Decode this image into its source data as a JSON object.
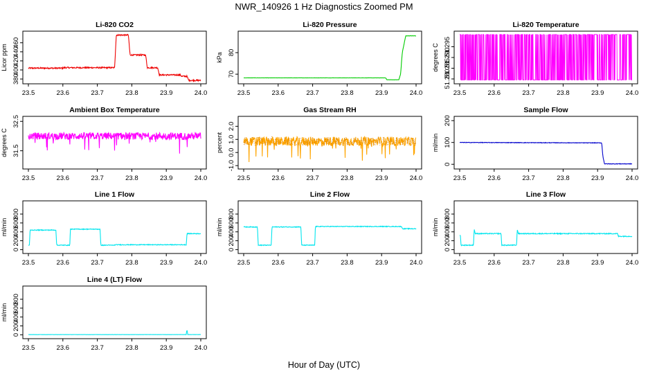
{
  "figure": {
    "title": "NWR_140926  1 Hz Diagnostics Zoomed PM",
    "xlabel": "Hour of Day (UTC)"
  },
  "chart_data": [
    {
      "type": "line",
      "id": "co2",
      "title": "Li-820 CO2",
      "ylabel": "Licor ppm",
      "color": "#ee0000",
      "xlim": [
        23.5,
        24.0
      ],
      "ylim": [
        374,
        481
      ],
      "xticks": [
        23.5,
        23.6,
        23.7,
        23.8,
        23.9,
        24.0
      ],
      "xtick_labels": [
        "23.5",
        "23.6",
        "23.7",
        "23.8",
        "23.9",
        "24.0"
      ],
      "yticks": [
        380,
        400,
        420,
        440,
        460
      ],
      "ytick_labels": [
        "380",
        "400",
        "420",
        "440",
        "460"
      ],
      "noise": 1.5,
      "x": [
        23.5,
        23.6,
        23.6,
        23.75,
        23.755,
        23.79,
        23.795,
        23.84,
        23.845,
        23.875,
        23.88,
        23.94,
        23.945,
        23.96,
        23.965,
        24.0
      ],
      "y": [
        404,
        404,
        405,
        405,
        477,
        477,
        433,
        433,
        405,
        405,
        389,
        389,
        386,
        386,
        377,
        377
      ]
    },
    {
      "type": "line",
      "id": "pressure",
      "title": "Li-820 Pressure",
      "ylabel": "kPa",
      "color": "#00cc00",
      "xlim": [
        23.5,
        24.0
      ],
      "ylim": [
        66.5,
        89
      ],
      "xticks": [
        23.5,
        23.6,
        23.7,
        23.8,
        23.9,
        24.0
      ],
      "xtick_labels": [
        "23.5",
        "23.6",
        "23.7",
        "23.8",
        "23.9",
        "24.0"
      ],
      "yticks": [
        70,
        80
      ],
      "ytick_labels": [
        "70",
        "80"
      ],
      "noise": 0.05,
      "x": [
        23.5,
        23.912,
        23.915,
        23.95,
        23.955,
        23.96,
        23.97,
        24.0
      ],
      "y": [
        68.3,
        68.3,
        67.4,
        67.4,
        70.0,
        80.0,
        87.8,
        87.8
      ]
    },
    {
      "type": "line",
      "id": "temperature",
      "title": "Li-820 Temperature",
      "ylabel": "degrees C",
      "color": "#ff00ff",
      "xlim": [
        23.5,
        24.0
      ],
      "ylim": [
        51.2787,
        51.3013
      ],
      "xticks": [
        23.5,
        23.6,
        23.7,
        23.8,
        23.9,
        24.0
      ],
      "xtick_labels": [
        "23.5",
        "23.6",
        "23.7",
        "23.8",
        "23.9",
        "24.0"
      ],
      "yticks": [
        51.28,
        51.285,
        51.29,
        51.295
      ],
      "ytick_labels": [
        "51.280",
        "51.285",
        "51.290",
        "51.295"
      ],
      "levels": [
        51.2795,
        51.3007
      ],
      "flip_rate": 0.35
    },
    {
      "type": "line",
      "id": "ambient",
      "title": "Ambient Box Temperature",
      "ylabel": "degrees C",
      "color": "#ff00ff",
      "xlim": [
        23.5,
        24.0
      ],
      "ylim": [
        30.95,
        32.6
      ],
      "xticks": [
        23.5,
        23.6,
        23.7,
        23.8,
        23.9,
        24.0
      ],
      "xtick_labels": [
        "23.5",
        "23.6",
        "23.7",
        "23.8",
        "23.9",
        "24.0"
      ],
      "yticks": [
        31.5,
        32.5
      ],
      "ytick_labels": [
        "31.5",
        "32.5"
      ],
      "mean": 32.0,
      "noise": 0.12,
      "spike_down": 0.55,
      "x": [
        23.5,
        24.0
      ],
      "y": [
        32.0,
        32.0
      ]
    },
    {
      "type": "scatter-line",
      "id": "rh",
      "title": "Gas Stream RH",
      "ylabel": "percent",
      "color": "#ffa500",
      "color2": "#bb6600",
      "xlim": [
        23.5,
        24.0
      ],
      "ylim": [
        -1.1,
        2.6
      ],
      "xticks": [
        23.5,
        23.6,
        23.7,
        23.8,
        23.9,
        24.0
      ],
      "xtick_labels": [
        "23.5",
        "23.6",
        "23.7",
        "23.8",
        "23.9",
        "24.0"
      ],
      "yticks": [
        -1.0,
        0.0,
        1.0,
        2.0
      ],
      "ytick_labels": [
        "-1.0",
        "0.0",
        "1.0",
        "2.0"
      ],
      "mean": 0.85,
      "noise": 0.35,
      "spike_down": 1.6,
      "x": [
        23.5,
        24.0
      ],
      "y": [
        0.85,
        0.85
      ]
    },
    {
      "type": "line",
      "id": "sample_flow",
      "title": "Sample Flow",
      "ylabel": "ml/min",
      "color": "#0000cc",
      "xlim": [
        23.5,
        24.0
      ],
      "ylim": [
        -12,
        210
      ],
      "xticks": [
        23.5,
        23.6,
        23.7,
        23.8,
        23.9,
        24.0
      ],
      "xtick_labels": [
        "23.5",
        "23.6",
        "23.7",
        "23.8",
        "23.9",
        "24.0"
      ],
      "yticks": [
        0,
        100,
        200
      ],
      "ytick_labels": [
        "0",
        "100",
        "200"
      ],
      "noise": 1.2,
      "x": [
        23.5,
        23.912,
        23.915,
        23.92,
        24.0
      ],
      "y": [
        100,
        98,
        40,
        2,
        2
      ]
    },
    {
      "type": "line",
      "id": "line1",
      "title": "Line 1 Flow",
      "ylabel": "ml/min",
      "color": "#00e5ee",
      "xlim": [
        23.5,
        24.0
      ],
      "ylim": [
        -40,
        1050
      ],
      "xticks": [
        23.5,
        23.6,
        23.7,
        23.8,
        23.9,
        24.0
      ],
      "xtick_labels": [
        "23.5",
        "23.6",
        "23.7",
        "23.8",
        "23.9",
        "24.0"
      ],
      "yticks": [
        0,
        200,
        400,
        600,
        800
      ],
      "ytick_labels": [
        "0",
        "200",
        "400",
        "600",
        "800"
      ],
      "noise": 8,
      "x": [
        23.5,
        23.503,
        23.505,
        23.58,
        23.582,
        23.62,
        23.622,
        23.708,
        23.71,
        23.75,
        23.752,
        23.958,
        23.96,
        24.0
      ],
      "y": [
        100,
        100,
        440,
        440,
        100,
        100,
        460,
        460,
        100,
        100,
        110,
        110,
        360,
        360
      ]
    },
    {
      "type": "line",
      "id": "line2",
      "title": "Line 2 Flow",
      "ylabel": "ml/min",
      "color": "#00e5ee",
      "xlim": [
        23.5,
        24.0
      ],
      "ylim": [
        -40,
        1050
      ],
      "xticks": [
        23.5,
        23.6,
        23.7,
        23.8,
        23.9,
        24.0
      ],
      "xtick_labels": [
        "23.5",
        "23.6",
        "23.7",
        "23.8",
        "23.9",
        "24.0"
      ],
      "yticks": [
        0,
        200,
        400,
        600,
        800
      ],
      "ytick_labels": [
        "0",
        "200",
        "400",
        "600",
        "800"
      ],
      "noise": 8,
      "x": [
        23.5,
        23.54,
        23.542,
        23.58,
        23.582,
        23.666,
        23.668,
        23.706,
        23.708,
        23.958,
        23.96,
        24.0
      ],
      "y": [
        510,
        510,
        100,
        100,
        510,
        510,
        100,
        100,
        520,
        520,
        470,
        470
      ]
    },
    {
      "type": "line",
      "id": "line3",
      "title": "Line 3 Flow",
      "ylabel": "ml/min",
      "color": "#00e5ee",
      "xlim": [
        23.5,
        24.0
      ],
      "ylim": [
        -40,
        1050
      ],
      "xticks": [
        23.5,
        23.6,
        23.7,
        23.8,
        23.9,
        24.0
      ],
      "xtick_labels": [
        "23.5",
        "23.6",
        "23.7",
        "23.8",
        "23.9",
        "24.0"
      ],
      "yticks": [
        0,
        200,
        400,
        600,
        800
      ],
      "ytick_labels": [
        "0",
        "200",
        "400",
        "600",
        "800"
      ],
      "noise": 10,
      "x": [
        23.5,
        23.502,
        23.504,
        23.54,
        23.542,
        23.545,
        23.62,
        23.622,
        23.665,
        23.667,
        23.67,
        23.958,
        23.96,
        24.0
      ],
      "y": [
        320,
        320,
        100,
        100,
        470,
        360,
        360,
        100,
        100,
        460,
        360,
        360,
        300,
        300
      ]
    },
    {
      "type": "line",
      "id": "line4",
      "title": "Line 4 (LT) Flow",
      "ylabel": "ml/min",
      "color": "#00e5ee",
      "xlim": [
        23.5,
        24.0
      ],
      "ylim": [
        -40,
        1050
      ],
      "xticks": [
        23.5,
        23.6,
        23.7,
        23.8,
        23.9,
        24.0
      ],
      "xtick_labels": [
        "23.5",
        "23.6",
        "23.7",
        "23.8",
        "23.9",
        "24.0"
      ],
      "yticks": [
        0,
        200,
        400,
        600,
        800
      ],
      "ytick_labels": [
        "0",
        "200",
        "400",
        "600",
        "800"
      ],
      "noise": 2,
      "x": [
        23.5,
        23.958,
        23.959,
        23.961,
        23.962,
        24.0
      ],
      "y": [
        5,
        5,
        90,
        90,
        5,
        5
      ]
    }
  ]
}
